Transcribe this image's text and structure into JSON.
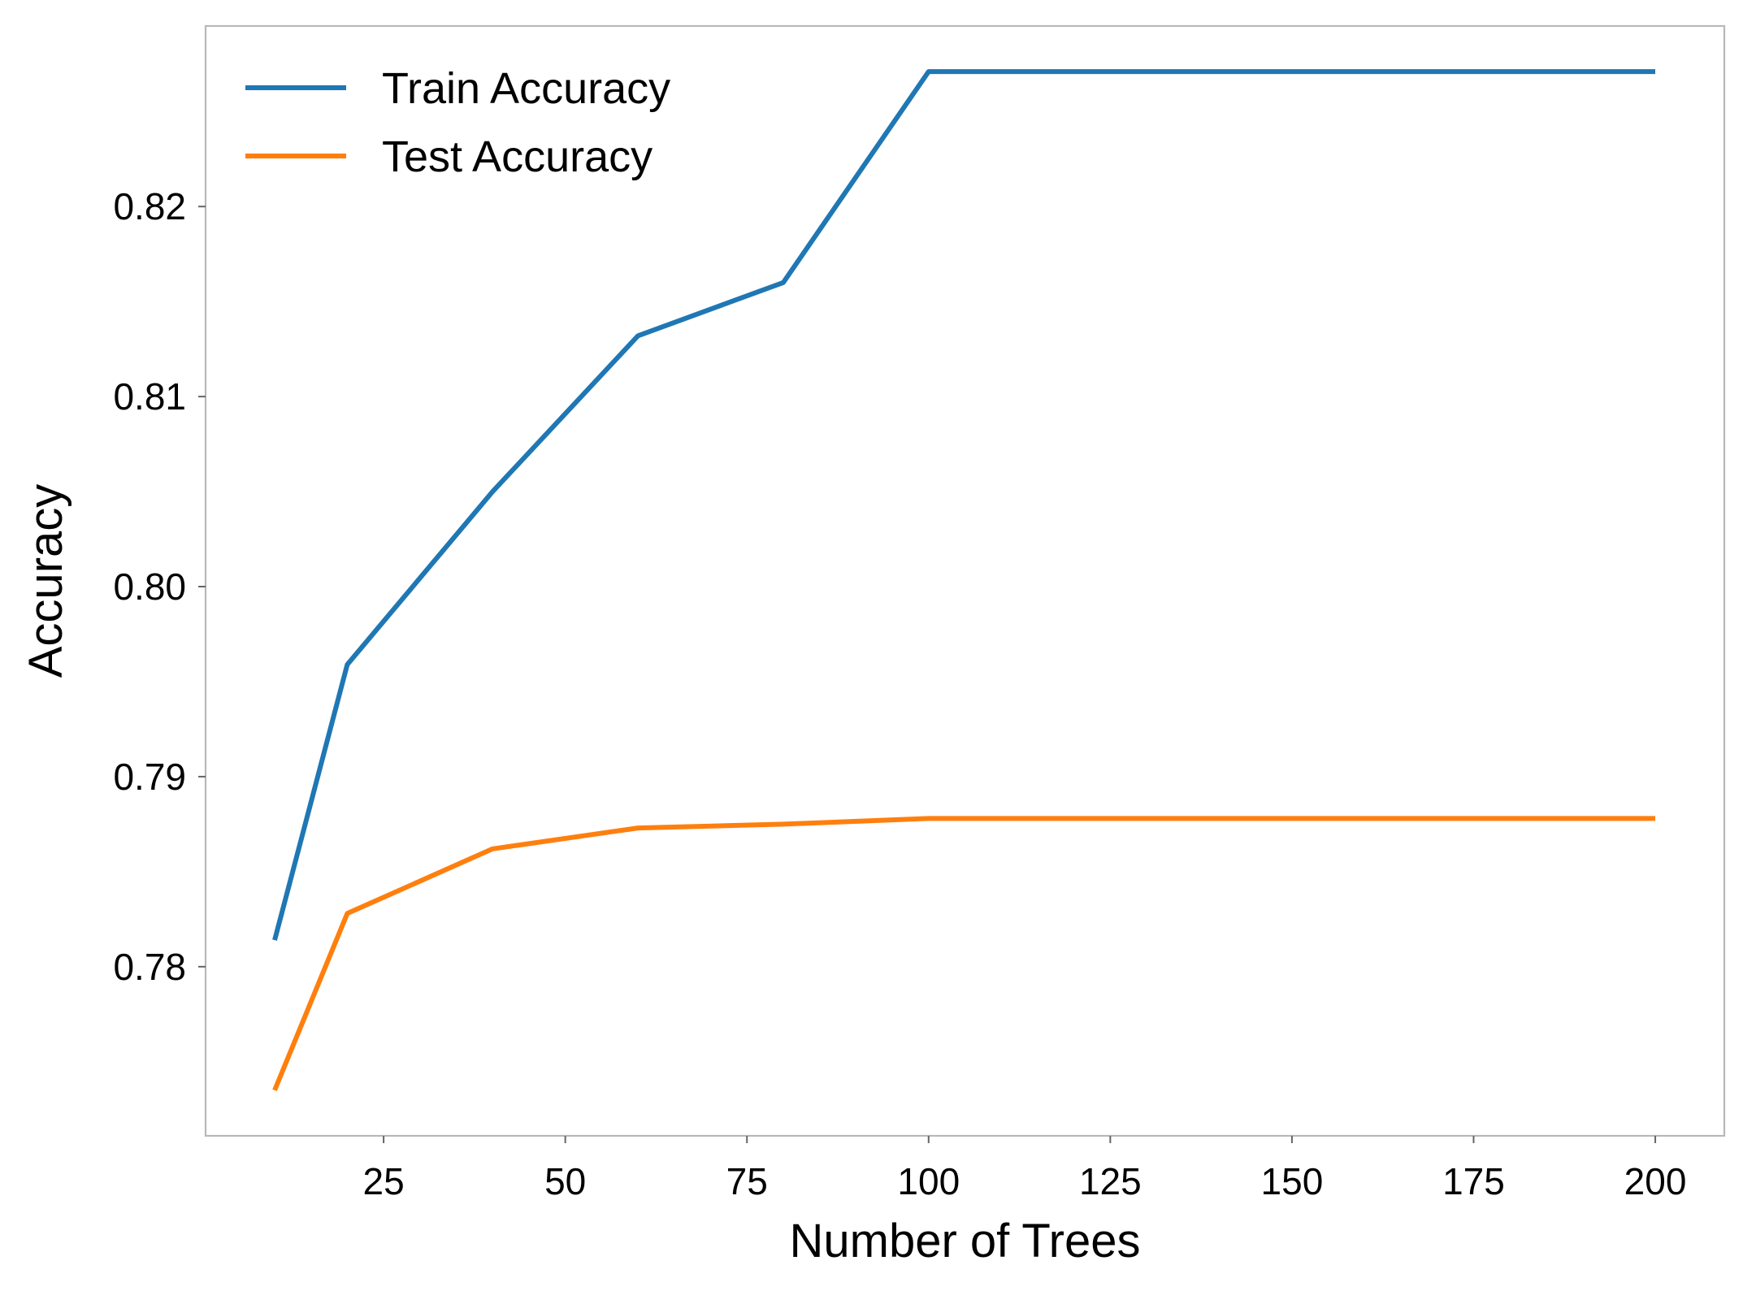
{
  "chart_data": {
    "type": "line",
    "title": "",
    "xlabel": "Number of Trees",
    "ylabel": "Accuracy",
    "x": [
      10,
      20,
      40,
      60,
      80,
      100,
      200
    ],
    "series": [
      {
        "name": "Train Accuracy",
        "color": "#1f77b4",
        "values": [
          0.7814,
          0.7959,
          0.805,
          0.8132,
          0.816,
          0.8271,
          0.8271
        ]
      },
      {
        "name": "Test Accuracy",
        "color": "#ff7f0e",
        "values": [
          0.7735,
          0.7828,
          0.7862,
          0.7873,
          0.7875,
          0.7878,
          0.7878
        ]
      }
    ],
    "xticks": [
      25,
      50,
      75,
      100,
      125,
      150,
      175,
      200
    ],
    "xtick_labels": [
      "25",
      "50",
      "75",
      "100",
      "125",
      "150",
      "175",
      "200"
    ],
    "yticks": [
      0.78,
      0.79,
      0.8,
      0.81,
      0.82
    ],
    "ytick_labels": [
      "0.78",
      "0.79",
      "0.80",
      "0.81",
      "0.82"
    ],
    "xlim": [
      0.5,
      209.5
    ],
    "ylim": [
      0.7711,
      0.8295
    ],
    "grid": false,
    "legend_position": "top-left"
  }
}
